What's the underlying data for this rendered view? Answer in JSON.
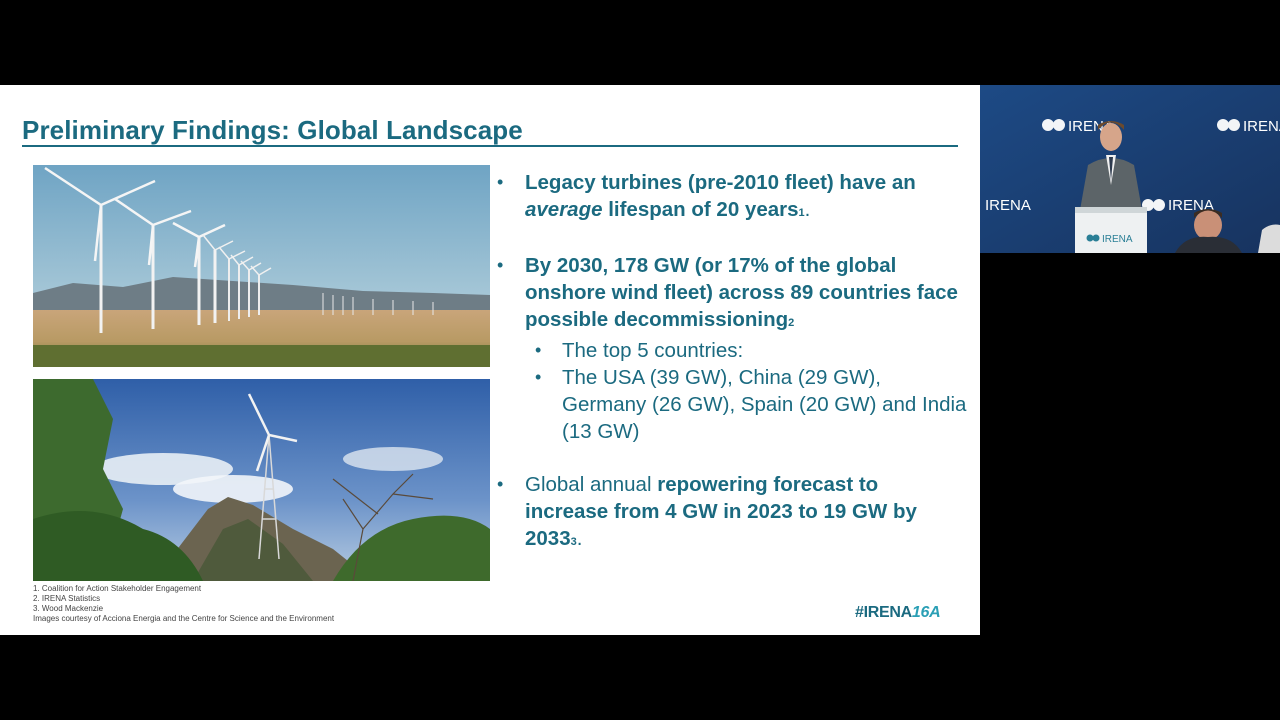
{
  "slide": {
    "title": "Preliminary Findings: Global Landscape",
    "bullets": [
      {
        "pre": "",
        "strong": "Legacy turbines (pre-2010 fleet) have an ",
        "em": "average",
        "strong2": " lifespan of 20 years",
        "ref": "1",
        "post": "."
      },
      {
        "strong": "By 2030, 178 GW (or 17% of the global onshore wind fleet) across 89 countries face possible decommissioning",
        "ref": "2"
      }
    ],
    "sub_bullets": [
      "The top 5 countries:",
      "The USA (39 GW), China (29 GW), Germany (26 GW), Spain (20 GW) and India (13 GW)"
    ],
    "bullet3": {
      "pre": "Global annual ",
      "strong": "repowering forecast to increase from 4 GW in 2023 to 19 GW by 2033",
      "ref": "3",
      "post": "."
    },
    "footnotes": [
      "1. Coalition for Action Stakeholder Engagement",
      "2. IRENA Statistics",
      "3. Wood Mackenzie",
      "Images courtesy of Acciona Energia and the Centre for Science and the Environment"
    ],
    "hashtag_text": "#IRENA",
    "hashtag_num": "16A"
  },
  "video": {
    "logo_text": "IRENA",
    "podium_text": "IRENA"
  },
  "colors": {
    "accent": "#1b6a80",
    "accent_light": "#2a9fb5",
    "background": "#000000",
    "slide_bg": "#ffffff"
  }
}
